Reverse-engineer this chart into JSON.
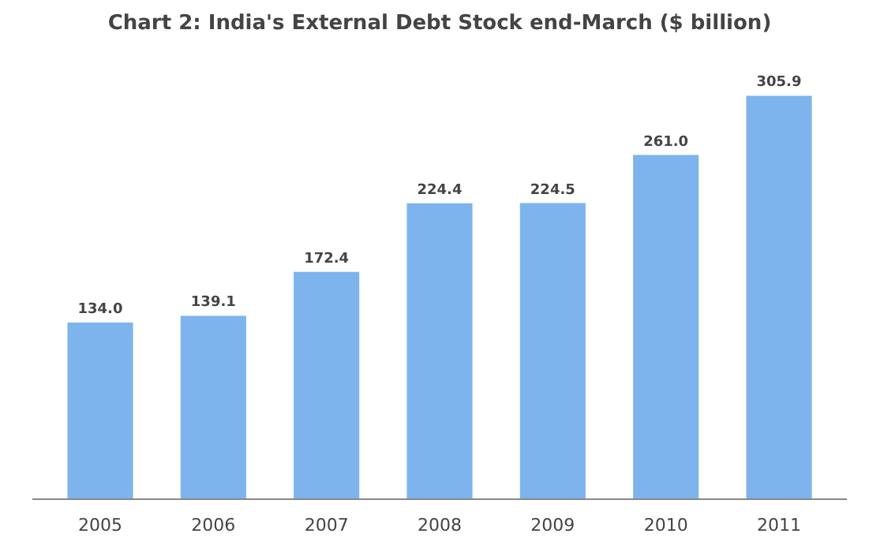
{
  "chart_data": {
    "type": "bar",
    "title": "Chart 2: India's External Debt Stock end-March ($ billion)",
    "categories": [
      "2005",
      "2006",
      "2007",
      "2008",
      "2009",
      "2010",
      "2011"
    ],
    "values": [
      134.0,
      139.1,
      172.4,
      224.4,
      224.5,
      261.0,
      305.9
    ],
    "value_labels": [
      "134.0",
      "139.1",
      "172.4",
      "224.4",
      "224.5",
      "261.0",
      "305.9"
    ],
    "color": "#7db4ee",
    "grid": false
  }
}
